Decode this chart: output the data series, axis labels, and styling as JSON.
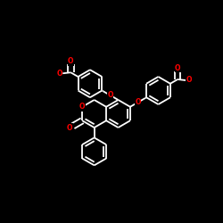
{
  "bg_color": "#000000",
  "bond_color": "#ffffff",
  "O_color": "#ff0000",
  "lw": 1.3,
  "dbo": 0.013,
  "R": 0.062,
  "figsize": [
    2.5,
    2.5
  ],
  "dpi": 100,
  "xlim": [
    0,
    1
  ],
  "ylim": [
    0,
    1
  ]
}
